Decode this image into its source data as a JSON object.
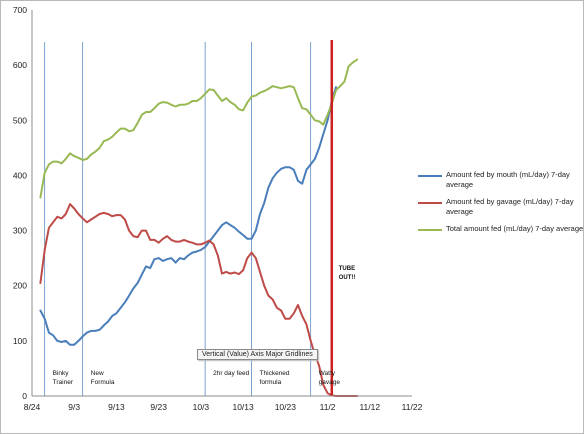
{
  "chart_data": {
    "type": "line",
    "title": "",
    "xlabel": "",
    "ylabel": "",
    "ylim": [
      0,
      700
    ],
    "yticks": [
      0,
      100,
      200,
      300,
      400,
      500,
      600,
      700
    ],
    "xlim": [
      "2012-08-24",
      "2012-11-22"
    ],
    "xticks": [
      "8/24",
      "9/3",
      "9/13",
      "9/23",
      "10/3",
      "10/13",
      "10/23",
      "11/2",
      "11/12",
      "11/22"
    ],
    "grid": "vertical event lines only",
    "legend_position": "right",
    "tooltip": "Vertical (Value) Axis Major Gridlines",
    "series": [
      {
        "name": "Amount fed by mouth (mL/day) 7-day average",
        "color": "#4a7ebb",
        "x": [
          "2012-08-26",
          "2012-08-27",
          "2012-08-28",
          "2012-08-29",
          "2012-08-30",
          "2012-08-31",
          "2012-09-01",
          "2012-09-02",
          "2012-09-03",
          "2012-09-04",
          "2012-09-05",
          "2012-09-06",
          "2012-09-07",
          "2012-09-08",
          "2012-09-09",
          "2012-09-10",
          "2012-09-11",
          "2012-09-12",
          "2012-09-13",
          "2012-09-14",
          "2012-09-15",
          "2012-09-16",
          "2012-09-17",
          "2012-09-18",
          "2012-09-19",
          "2012-09-20",
          "2012-09-21",
          "2012-09-22",
          "2012-09-23",
          "2012-09-24",
          "2012-09-25",
          "2012-09-26",
          "2012-09-27",
          "2012-09-28",
          "2012-09-29",
          "2012-09-30",
          "2012-10-01",
          "2012-10-02",
          "2012-10-03",
          "2012-10-04",
          "2012-10-05",
          "2012-10-06",
          "2012-10-07",
          "2012-10-08",
          "2012-10-09",
          "2012-10-10",
          "2012-10-11",
          "2012-10-12",
          "2012-10-13",
          "2012-10-14",
          "2012-10-15",
          "2012-10-16",
          "2012-10-17",
          "2012-10-18",
          "2012-10-19",
          "2012-10-20",
          "2012-10-21",
          "2012-10-22",
          "2012-10-23",
          "2012-10-24",
          "2012-10-25",
          "2012-10-26",
          "2012-10-27",
          "2012-10-28",
          "2012-10-29",
          "2012-10-30",
          "2012-10-31",
          "2012-11-01",
          "2012-11-02",
          "2012-11-03",
          "2012-11-04"
        ],
        "y": [
          155,
          140,
          115,
          110,
          100,
          98,
          100,
          93,
          93,
          100,
          108,
          115,
          118,
          118,
          120,
          128,
          135,
          145,
          150,
          160,
          170,
          182,
          195,
          205,
          220,
          235,
          232,
          248,
          250,
          245,
          248,
          250,
          242,
          250,
          248,
          255,
          260,
          262,
          265,
          270,
          280,
          290,
          300,
          310,
          315,
          310,
          305,
          298,
          292,
          285,
          285,
          300,
          330,
          350,
          378,
          395,
          405,
          412,
          415,
          415,
          410,
          390,
          385,
          410,
          420,
          430,
          450,
          475,
          500,
          535,
          560
        ]
      },
      {
        "name": "Amount fed by gavage (mL/day) 7-day average",
        "color": "#be4b48",
        "x": [
          "2012-08-26",
          "2012-08-27",
          "2012-08-28",
          "2012-08-29",
          "2012-08-30",
          "2012-08-31",
          "2012-09-01",
          "2012-09-02",
          "2012-09-03",
          "2012-09-04",
          "2012-09-05",
          "2012-09-06",
          "2012-09-07",
          "2012-09-08",
          "2012-09-09",
          "2012-09-10",
          "2012-09-11",
          "2012-09-12",
          "2012-09-13",
          "2012-09-14",
          "2012-09-15",
          "2012-09-16",
          "2012-09-17",
          "2012-09-18",
          "2012-09-19",
          "2012-09-20",
          "2012-09-21",
          "2012-09-22",
          "2012-09-23",
          "2012-09-24",
          "2012-09-25",
          "2012-09-26",
          "2012-09-27",
          "2012-09-28",
          "2012-09-29",
          "2012-09-30",
          "2012-10-01",
          "2012-10-02",
          "2012-10-03",
          "2012-10-04",
          "2012-10-05",
          "2012-10-06",
          "2012-10-07",
          "2012-10-08",
          "2012-10-09",
          "2012-10-10",
          "2012-10-11",
          "2012-10-12",
          "2012-10-13",
          "2012-10-14",
          "2012-10-15",
          "2012-10-16",
          "2012-10-17",
          "2012-10-18",
          "2012-10-19",
          "2012-10-20",
          "2012-10-21",
          "2012-10-22",
          "2012-10-23",
          "2012-10-24",
          "2012-10-25",
          "2012-10-26",
          "2012-10-27",
          "2012-10-28",
          "2012-10-29",
          "2012-10-30",
          "2012-10-31",
          "2012-11-01",
          "2012-11-02",
          "2012-11-03",
          "2012-11-04",
          "2012-11-05",
          "2012-11-06",
          "2012-11-07",
          "2012-11-08",
          "2012-11-09"
        ],
        "y": [
          205,
          265,
          305,
          315,
          325,
          322,
          330,
          348,
          340,
          330,
          322,
          315,
          320,
          325,
          330,
          332,
          330,
          326,
          328,
          328,
          320,
          300,
          290,
          288,
          300,
          300,
          283,
          283,
          278,
          285,
          290,
          283,
          280,
          280,
          283,
          280,
          278,
          275,
          275,
          278,
          282,
          275,
          255,
          222,
          225,
          222,
          224,
          221,
          228,
          250,
          260,
          250,
          225,
          200,
          182,
          175,
          160,
          155,
          140,
          140,
          150,
          165,
          145,
          130,
          100,
          75,
          55,
          20,
          5,
          1,
          0,
          0,
          0,
          0,
          0,
          0
        ]
      },
      {
        "name": "Total amount fed (mL/day) 7-day average",
        "color": "#98b954",
        "x": [
          "2012-08-26",
          "2012-08-27",
          "2012-08-28",
          "2012-08-29",
          "2012-08-30",
          "2012-08-31",
          "2012-09-01",
          "2012-09-02",
          "2012-09-03",
          "2012-09-04",
          "2012-09-05",
          "2012-09-06",
          "2012-09-07",
          "2012-09-08",
          "2012-09-09",
          "2012-09-10",
          "2012-09-11",
          "2012-09-12",
          "2012-09-13",
          "2012-09-14",
          "2012-09-15",
          "2012-09-16",
          "2012-09-17",
          "2012-09-18",
          "2012-09-19",
          "2012-09-20",
          "2012-09-21",
          "2012-09-22",
          "2012-09-23",
          "2012-09-24",
          "2012-09-25",
          "2012-09-26",
          "2012-09-27",
          "2012-09-28",
          "2012-09-29",
          "2012-09-30",
          "2012-10-01",
          "2012-10-02",
          "2012-10-03",
          "2012-10-04",
          "2012-10-05",
          "2012-10-06",
          "2012-10-07",
          "2012-10-08",
          "2012-10-09",
          "2012-10-10",
          "2012-10-11",
          "2012-10-12",
          "2012-10-13",
          "2012-10-14",
          "2012-10-15",
          "2012-10-16",
          "2012-10-17",
          "2012-10-18",
          "2012-10-19",
          "2012-10-20",
          "2012-10-21",
          "2012-10-22",
          "2012-10-23",
          "2012-10-24",
          "2012-10-25",
          "2012-10-26",
          "2012-10-27",
          "2012-10-28",
          "2012-10-29",
          "2012-10-30",
          "2012-10-31",
          "2012-11-01",
          "2012-11-02",
          "2012-11-03",
          "2012-11-04",
          "2012-11-05",
          "2012-11-06",
          "2012-11-07",
          "2012-11-08",
          "2012-11-09"
        ],
        "y": [
          360,
          405,
          420,
          425,
          425,
          422,
          430,
          440,
          435,
          432,
          428,
          430,
          438,
          443,
          450,
          462,
          465,
          470,
          478,
          485,
          485,
          480,
          482,
          495,
          510,
          515,
          515,
          522,
          530,
          533,
          532,
          528,
          525,
          528,
          528,
          530,
          535,
          535,
          540,
          548,
          556,
          555,
          545,
          535,
          540,
          533,
          528,
          520,
          518,
          532,
          543,
          545,
          550,
          553,
          557,
          562,
          560,
          558,
          560,
          562,
          560,
          540,
          522,
          520,
          510,
          500,
          498,
          492,
          510,
          530,
          555,
          562,
          570,
          598,
          605,
          610
        ]
      }
    ],
    "event_lines": [
      {
        "date": "2012-08-27",
        "label": "Binky\nTrainer"
      },
      {
        "date": "2012-09-05",
        "label": "New\nFormula"
      },
      {
        "date": "2012-10-04",
        "label": "2hr day feed"
      },
      {
        "date": "2012-10-15",
        "label": "Thickened\nformula"
      },
      {
        "date": "2012-10-29",
        "label": "Watty\ngavage"
      }
    ],
    "tube_out": {
      "date": "2012-11-03",
      "label": "TUBE\nOUT!!",
      "color": "#cc1f1f"
    }
  }
}
